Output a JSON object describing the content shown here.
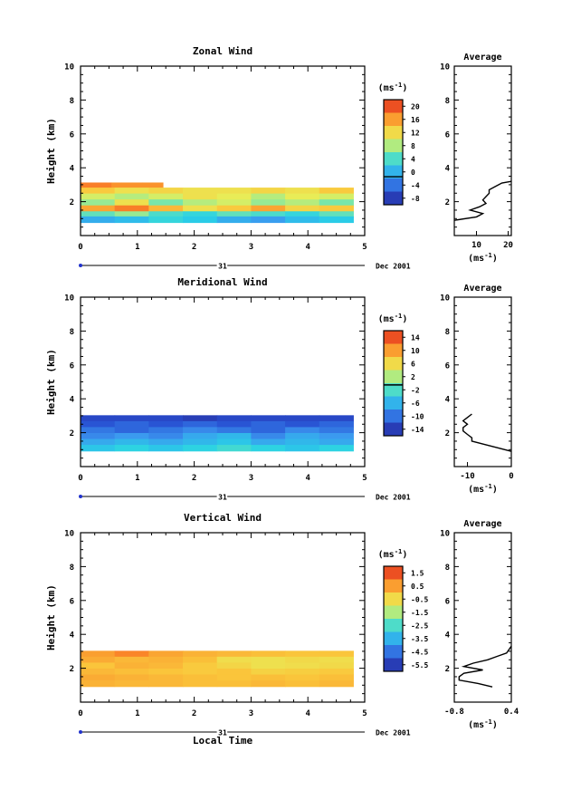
{
  "figure": {
    "xlabel": "Local Time",
    "date_day": "31",
    "date_label": "Dec 2001"
  },
  "chart_data": [
    {
      "type": "heatmap",
      "title": "Zonal Wind",
      "ylabel": "Height (km)",
      "xlabel": "Local Time",
      "xlim": [
        0,
        5
      ],
      "ylim": [
        0,
        10
      ],
      "xticks": [
        "0",
        "1",
        "2",
        "3",
        "4",
        "5"
      ],
      "yticks": [
        "2",
        "4",
        "6",
        "8",
        "10"
      ],
      "colorbar": {
        "unit": "(ms-1)",
        "min": -8,
        "max": 22,
        "tick_labels": [
          "20",
          "16",
          "12",
          "8",
          "4",
          "0",
          "-4",
          "-8"
        ],
        "zero_line": 0
      },
      "rows": [
        {
          "z": 2.95,
          "x_end": 1.45,
          "values": [
            18,
            18,
            18,
            17,
            17,
            17,
            17,
            17
          ]
        },
        {
          "z": 2.65,
          "x_end": 4.8,
          "values": [
            14,
            12,
            13,
            12,
            12,
            13,
            12,
            14
          ]
        },
        {
          "z": 2.3,
          "x_end": 4.8,
          "values": [
            10,
            9,
            10,
            12,
            11,
            9,
            11,
            10
          ]
        },
        {
          "z": 1.95,
          "x_end": 4.8,
          "values": [
            8,
            12,
            7,
            9,
            10,
            8,
            9,
            7
          ]
        },
        {
          "z": 1.6,
          "x_end": 4.8,
          "values": [
            16,
            18,
            15,
            12,
            14,
            16,
            13,
            14
          ]
        },
        {
          "z": 1.25,
          "x_end": 4.8,
          "values": [
            6,
            8,
            5,
            4,
            6,
            5,
            4,
            6
          ]
        },
        {
          "z": 0.95,
          "x_end": 4.8,
          "values": [
            1,
            2,
            4,
            3,
            1,
            0,
            2,
            3
          ]
        }
      ],
      "profile": {
        "title": "Average",
        "xlabel": "(ms-1)",
        "xlim": [
          3,
          21
        ],
        "xticks": [
          "10",
          "20"
        ],
        "z": [
          0.9,
          1.1,
          1.3,
          1.5,
          1.7,
          1.9,
          2.1,
          2.3,
          2.5,
          2.7,
          2.9,
          3.1,
          3.2
        ],
        "values": [
          3,
          10,
          12,
          8,
          11,
          13,
          12,
          13,
          14,
          14,
          16,
          18,
          21
        ]
      }
    },
    {
      "type": "heatmap",
      "title": "Meridional Wind",
      "ylabel": "Height (km)",
      "xlabel": "Local Time",
      "xlim": [
        0,
        5
      ],
      "ylim": [
        0,
        10
      ],
      "xticks": [
        "0",
        "1",
        "2",
        "3",
        "4",
        "5"
      ],
      "yticks": [
        "2",
        "4",
        "6",
        "8",
        "10"
      ],
      "colorbar": {
        "unit": "(ms-1)",
        "min": -15,
        "max": 16,
        "tick_labels": [
          "14",
          "10",
          "6",
          "2",
          "-2",
          "-6",
          "-10",
          "-14"
        ],
        "zero_line": 0
      },
      "rows": [
        {
          "z": 2.85,
          "x_end": 4.8,
          "values": [
            -12,
            -12,
            -12,
            -13,
            -12,
            -12,
            -12,
            -12
          ]
        },
        {
          "z": 2.5,
          "x_end": 4.8,
          "values": [
            -11,
            -10,
            -11,
            -10,
            -11,
            -10,
            -11,
            -10
          ]
        },
        {
          "z": 2.15,
          "x_end": 4.8,
          "values": [
            -9,
            -10,
            -9,
            -8,
            -9,
            -10,
            -8,
            -9
          ]
        },
        {
          "z": 1.8,
          "x_end": 4.8,
          "values": [
            -8,
            -7,
            -8,
            -6,
            -5,
            -8,
            -6,
            -7
          ]
        },
        {
          "z": 1.45,
          "x_end": 4.8,
          "values": [
            -6,
            -5,
            -6,
            -5,
            -4,
            -6,
            -5,
            -6
          ]
        },
        {
          "z": 1.1,
          "x_end": 4.8,
          "values": [
            -4,
            -3,
            -4,
            -3,
            -2,
            -3,
            -4,
            -3
          ]
        }
      ],
      "profile": {
        "title": "Average",
        "xlabel": "(ms-1)",
        "xlim": [
          -13,
          0
        ],
        "xticks": [
          "-10",
          "0"
        ],
        "z": [
          0.9,
          1.1,
          1.3,
          1.5,
          1.7,
          1.9,
          2.1,
          2.3,
          2.5,
          2.7,
          2.9,
          3.1
        ],
        "values": [
          0,
          -3,
          -6,
          -9,
          -9,
          -10,
          -11,
          -11,
          -10,
          -11,
          -10,
          -9
        ]
      }
    },
    {
      "type": "heatmap",
      "title": "Vertical Wind",
      "ylabel": "Height (km)",
      "xlabel": "Local Time",
      "xlim": [
        0,
        5
      ],
      "ylim": [
        0,
        10
      ],
      "xticks": [
        "0",
        "1",
        "2",
        "3",
        "4",
        "5"
      ],
      "yticks": [
        "2",
        "4",
        "6",
        "8",
        "10"
      ],
      "colorbar": {
        "unit": "(ms-1)",
        "min": -6.5,
        "max": 2.5,
        "tick_labels": [
          "1.5",
          "0.5",
          "-0.5",
          "-1.5",
          "-2.5",
          "-3.5",
          "-4.5",
          "-5.5"
        ]
      },
      "rows": [
        {
          "z": 2.85,
          "x_end": 4.8,
          "values": [
            0.8,
            1.2,
            0.7,
            0.5,
            0.4,
            0.3,
            0.2,
            0.2
          ]
        },
        {
          "z": 2.5,
          "x_end": 4.8,
          "values": [
            0.6,
            0.4,
            0.5,
            0.3,
            -0.4,
            -0.5,
            -0.3,
            -0.4
          ]
        },
        {
          "z": 2.15,
          "x_end": 4.8,
          "values": [
            0.2,
            0.5,
            0.4,
            0.1,
            -0.2,
            -0.5,
            -0.4,
            -0.3
          ]
        },
        {
          "z": 1.8,
          "x_end": 4.8,
          "values": [
            0.4,
            0.3,
            0.2,
            0.1,
            0.2,
            -0.1,
            0.0,
            0.1
          ]
        },
        {
          "z": 1.45,
          "x_end": 4.8,
          "values": [
            0.6,
            0.5,
            0.4,
            0.3,
            0.2,
            0.3,
            0.2,
            0.3
          ]
        },
        {
          "z": 1.1,
          "x_end": 4.8,
          "values": [
            0.5,
            0.4,
            0.4,
            0.3,
            0.3,
            0.4,
            0.3,
            0.4
          ]
        }
      ],
      "profile": {
        "title": "Average",
        "xlabel": "(ms-1)",
        "xlim": [
          -0.8,
          0.4
        ],
        "xticks": [
          "-0.8",
          "0.4"
        ],
        "z": [
          0.9,
          1.1,
          1.3,
          1.5,
          1.7,
          1.9,
          2.1,
          2.3,
          2.5,
          2.7,
          2.9,
          3.1,
          3.3
        ],
        "values": [
          0.0,
          -0.3,
          -0.7,
          -0.7,
          -0.6,
          -0.2,
          -0.6,
          -0.4,
          -0.1,
          0.1,
          0.3,
          0.35,
          0.4
        ]
      }
    }
  ]
}
